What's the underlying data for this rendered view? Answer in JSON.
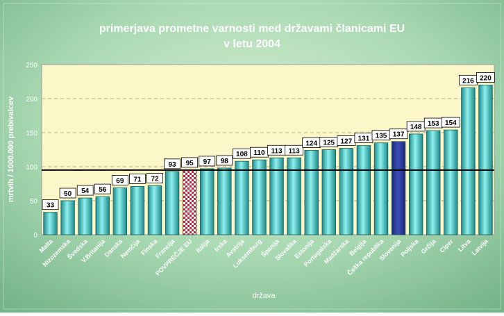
{
  "chart_data": {
    "type": "bar",
    "title_line1": "primerjava prometne varnosti med državami članicami EU",
    "title_line2": "v letu 2004",
    "xlabel": "država",
    "ylabel": "mrtvih / 1000.000 prebivalcev",
    "ylim": [
      0,
      250
    ],
    "yticks": [
      "0",
      "50",
      "100",
      "150",
      "200",
      "250"
    ],
    "grid": true,
    "reference_line": 95,
    "categories": [
      "Malta",
      "Nizozemska",
      "Švedska",
      "V.Britanija",
      "Danska",
      "Nemčija",
      "Finska",
      "Francija",
      "POVPREČJE EU",
      "Italija",
      "Irska",
      "Avstrija",
      "Luksemburg",
      "Španija",
      "Slovaška",
      "Estonija",
      "Portugalska",
      "Madžarska",
      "Belgija",
      "Češka republika",
      "Slovenija",
      "Poljska",
      "Grčija",
      "Ciper",
      "Litva",
      "Latvija"
    ],
    "values": [
      33,
      50,
      54,
      56,
      69,
      71,
      72,
      93,
      95,
      97,
      98,
      108,
      110,
      113,
      113,
      124,
      125,
      127,
      131,
      135,
      137,
      148,
      153,
      154,
      216,
      220
    ],
    "value_labels": [
      "33",
      "50",
      "54",
      "56",
      "69",
      "71",
      "72",
      "93",
      "95",
      "97",
      "98",
      "108",
      "110",
      "113",
      "113",
      "124",
      "125",
      "127",
      "131",
      "135",
      "137",
      "148",
      "153",
      "154",
      "216",
      "220"
    ],
    "bar_styles": [
      "teal",
      "teal",
      "teal",
      "teal",
      "teal",
      "teal",
      "teal",
      "teal",
      "checkered",
      "teal",
      "teal",
      "teal",
      "teal",
      "teal",
      "teal",
      "teal",
      "teal",
      "teal",
      "teal",
      "teal",
      "navy",
      "teal",
      "teal",
      "teal",
      "teal",
      "teal"
    ],
    "colors": {
      "background": "#8ec7a0",
      "plot": "#fbf7c8",
      "bar": "#2fb3b6",
      "highlight": "#2b3a98",
      "check_a": "#c0283c",
      "check_b": "#ffffff",
      "title": "#ffffff",
      "reference": "#000000"
    }
  }
}
